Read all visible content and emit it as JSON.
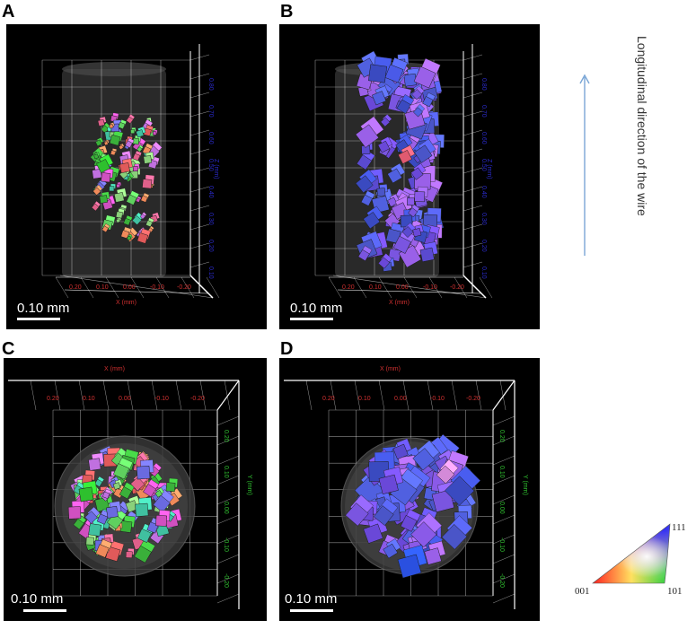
{
  "panels": {
    "a": {
      "letter": "A",
      "scale_label": "0.10 mm",
      "axis_x": "X (mm)",
      "axis_z": "Z (mm)"
    },
    "b": {
      "letter": "B",
      "scale_label": "0.10 mm",
      "axis_x": "X (mm)",
      "axis_z": "Z (mm)"
    },
    "c": {
      "letter": "C",
      "scale_label": "0.10 mm",
      "axis_x": "X (mm)",
      "axis_y": "Y (mm)"
    },
    "d": {
      "letter": "D",
      "scale_label": "0.10 mm",
      "axis_x": "X (mm)",
      "axis_y": "Y (mm)"
    }
  },
  "side_label": "Longitudinal direction of the wire",
  "legend": {
    "top": "111",
    "left": "001",
    "right": "101"
  },
  "colors": {
    "panel_bg": "#000000",
    "grid": "#ffffff",
    "x_axis_text": "#d03030",
    "y_axis_text": "#30c030",
    "z_axis_text": "#2a2ac8",
    "arrow": "#7aa6d6"
  }
}
